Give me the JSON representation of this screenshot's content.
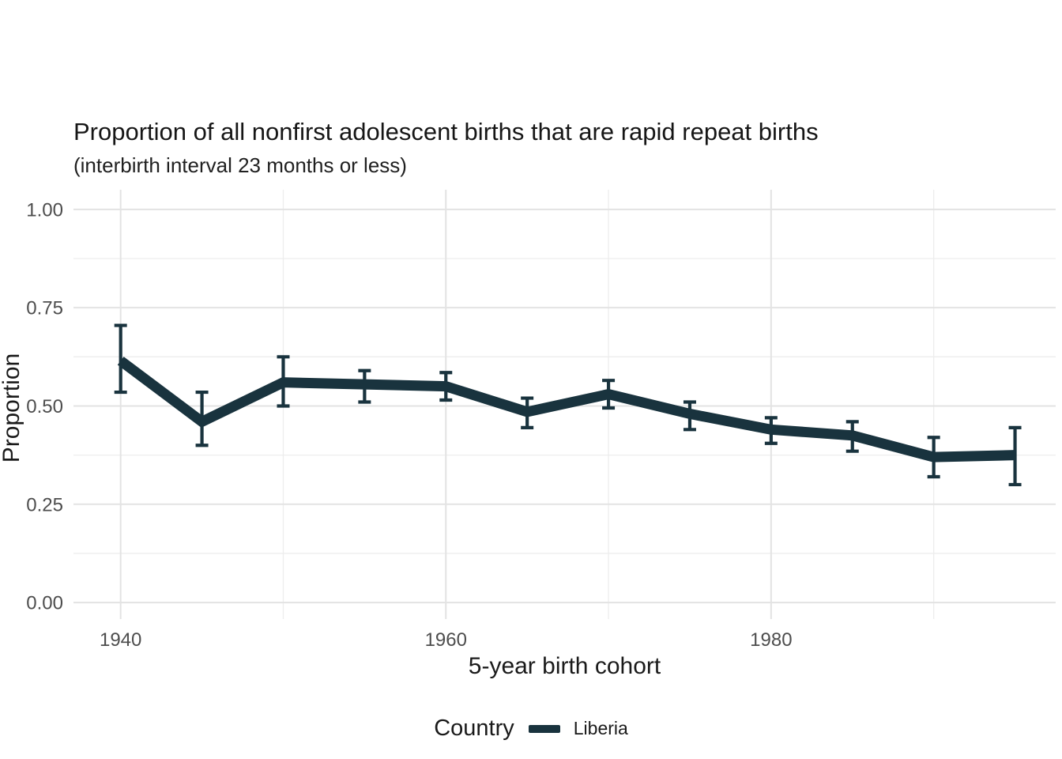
{
  "figure": {
    "title": "Proportion of all nonfirst adolescent births that are rapid repeat births",
    "subtitle": "(interbirth interval 23 months or less)"
  },
  "chart_data": {
    "type": "line",
    "title": "Proportion of all nonfirst adolescent births that are rapid repeat births",
    "subtitle": "(interbirth interval 23 months or less)",
    "xlabel": "5-year birth cohort",
    "ylabel": "Proportion",
    "x": [
      1940,
      1945,
      1950,
      1955,
      1960,
      1965,
      1970,
      1975,
      1980,
      1985,
      1990,
      1995
    ],
    "series": [
      {
        "name": "Liberia",
        "color": "#19333E",
        "values": [
          0.615,
          0.46,
          0.56,
          0.555,
          0.55,
          0.485,
          0.53,
          0.48,
          0.44,
          0.425,
          0.37,
          0.375
        ],
        "ci_lower": [
          0.535,
          0.4,
          0.5,
          0.51,
          0.515,
          0.445,
          0.495,
          0.44,
          0.405,
          0.385,
          0.32,
          0.3
        ],
        "ci_upper": [
          0.705,
          0.535,
          0.625,
          0.59,
          0.585,
          0.52,
          0.565,
          0.51,
          0.47,
          0.46,
          0.42,
          0.445
        ]
      }
    ],
    "error_bars": true,
    "grid": true,
    "x_ticks": {
      "values": [
        1940,
        1960,
        1980
      ],
      "labels": [
        "1940",
        "1960",
        "1980"
      ]
    },
    "x_minor": [
      1950,
      1970,
      1990
    ],
    "y_ticks": {
      "values": [
        0,
        0.25,
        0.5,
        0.75,
        1
      ],
      "labels": [
        "0.00",
        "0.25",
        "0.50",
        "0.75",
        "1.00"
      ]
    },
    "y_minor": [
      0.125,
      0.375,
      0.625,
      0.875
    ],
    "xlim": [
      1937.1,
      1997.5
    ],
    "ylim": [
      -0.042,
      1.05
    ],
    "legend_position": "bottom",
    "legend_title": "Country"
  },
  "legend": {
    "title": "Country",
    "entries": [
      {
        "label": "Liberia",
        "color": "#19333E"
      }
    ]
  },
  "colors": {
    "line": "#19333E",
    "grid_major": "#E3E3E3",
    "grid_minor": "#EDEDED",
    "tick_label": "#4D4D4D",
    "text": "#1A1A1A",
    "background": "#FFFFFF"
  }
}
